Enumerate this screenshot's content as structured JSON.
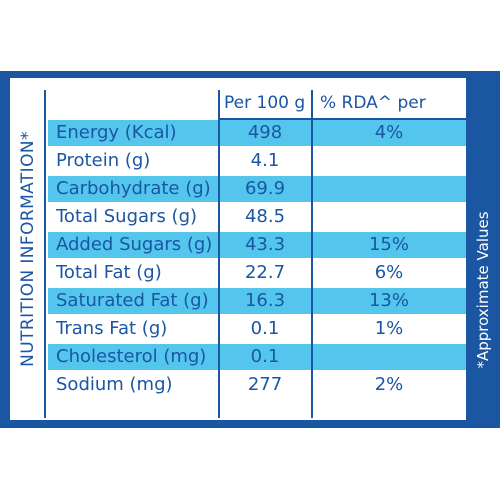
{
  "side_label": "NUTRITION INFORMATION*",
  "footnote": "*Approximate Values",
  "headers": {
    "per100": "Per 100 g",
    "rda": "% RDA^ per serve"
  },
  "colors": {
    "navy": "#1b56a3",
    "stripe": "#54c6ee",
    "background": "#ffffff"
  },
  "rows": [
    {
      "name": "Energy (Kcal)",
      "per100": "498",
      "rda": "4%"
    },
    {
      "name": "Protein (g)",
      "per100": "4.1",
      "rda": ""
    },
    {
      "name": "Carbohydrate (g)",
      "per100": "69.9",
      "rda": ""
    },
    {
      "name": "Total Sugars (g)",
      "per100": "48.5",
      "rda": ""
    },
    {
      "name": "Added Sugars (g)",
      "per100": "43.3",
      "rda": "15%"
    },
    {
      "name": "Total Fat (g)",
      "per100": "22.7",
      "rda": "6%"
    },
    {
      "name": "Saturated Fat (g)",
      "per100": "16.3",
      "rda": "13%"
    },
    {
      "name": "Trans Fat (g)",
      "per100": "0.1",
      "rda": "1%"
    },
    {
      "name": "Cholesterol (mg)",
      "per100": "0.1",
      "rda": ""
    },
    {
      "name": "Sodium (mg)",
      "per100": "277",
      "rda": "2%"
    }
  ]
}
